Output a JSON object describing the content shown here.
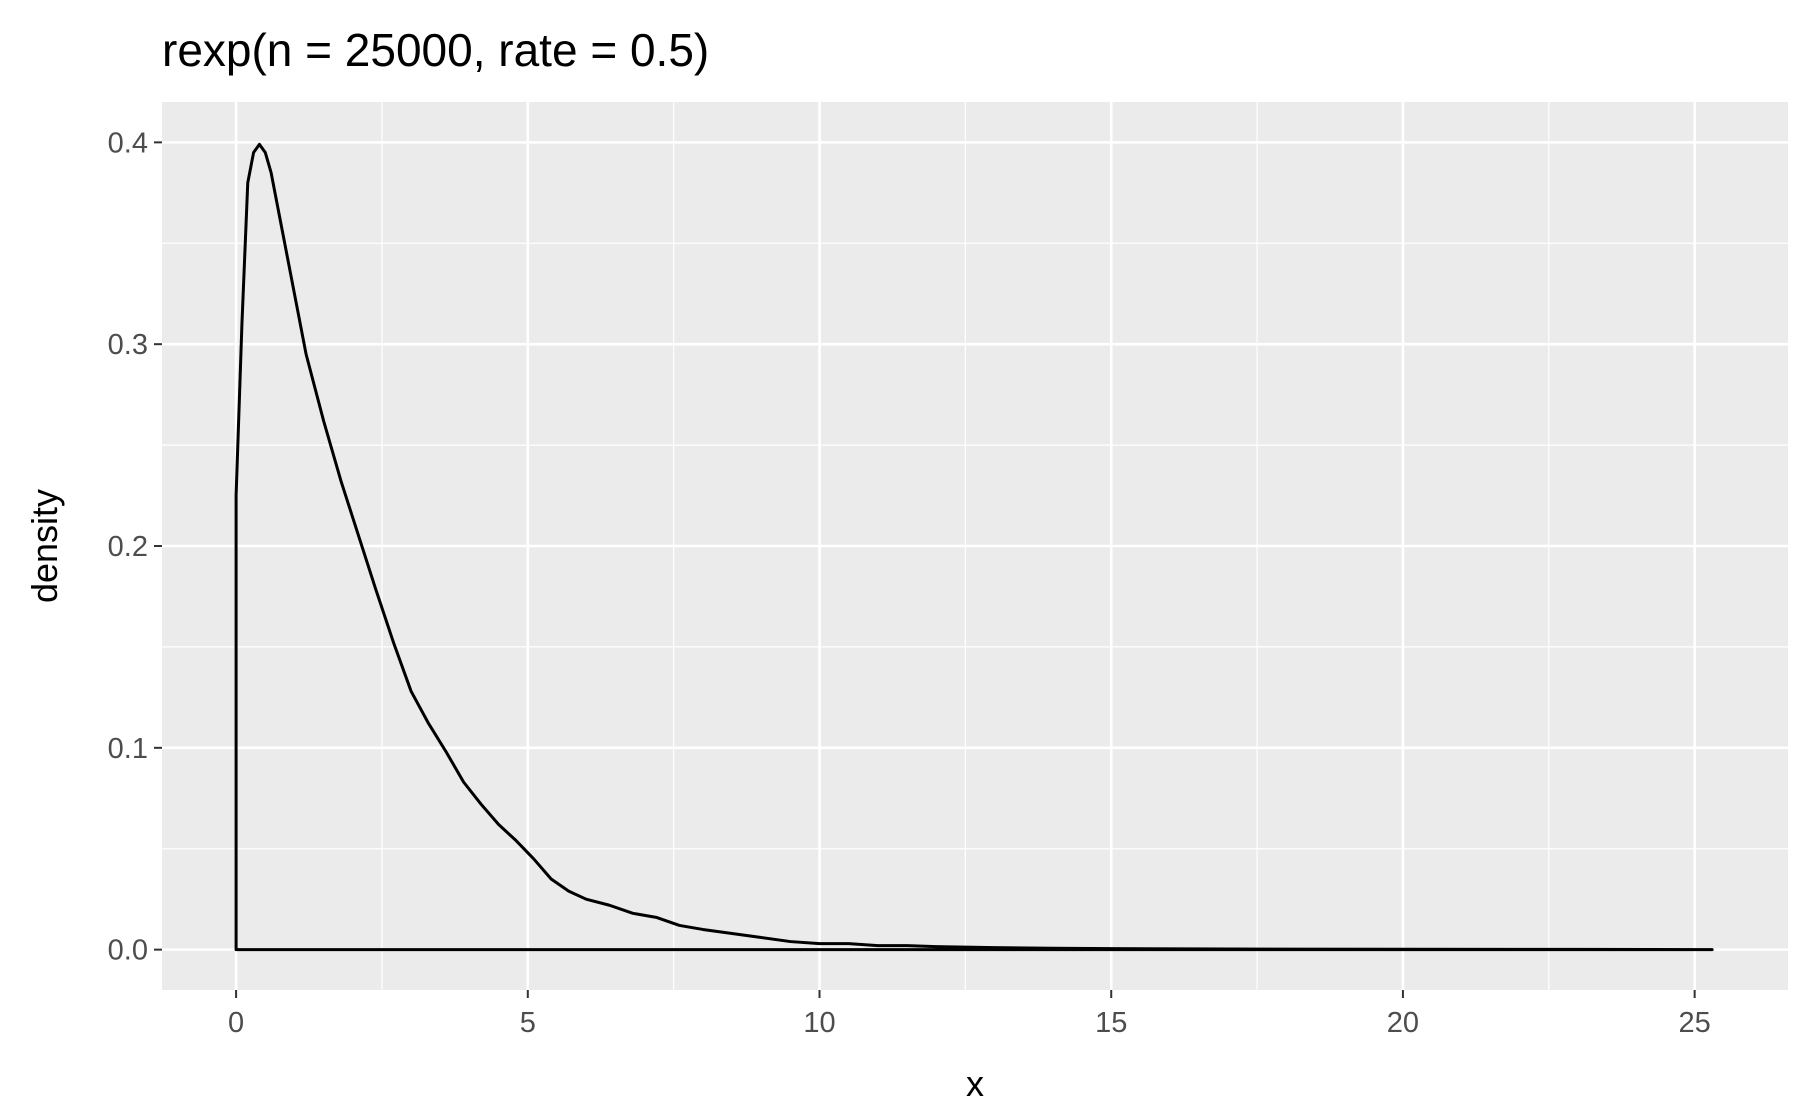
{
  "chart_data": {
    "type": "area",
    "title": "rexp(n = 25000, rate = 0.5)",
    "xlabel": "x",
    "ylabel": "density",
    "xlim": [
      -1.27,
      26.6
    ],
    "ylim": [
      -0.02,
      0.42
    ],
    "x_ticks": [
      0,
      5,
      10,
      15,
      20,
      25
    ],
    "x_tick_labels": [
      "0",
      "5",
      "10",
      "15",
      "20",
      "25"
    ],
    "y_ticks": [
      0.0,
      0.1,
      0.2,
      0.3,
      0.4
    ],
    "y_tick_labels": [
      "0.0",
      "0.1",
      "0.2",
      "0.3",
      "0.4"
    ],
    "grid": true,
    "background": "#EBEBEB",
    "grid_color": "#FFFFFF",
    "line_color": "#000000",
    "series": [
      {
        "x": [
          0.0,
          0.1,
          0.2,
          0.3,
          0.4,
          0.5,
          0.6,
          0.7,
          0.8,
          1.0,
          1.2,
          1.5,
          1.8,
          2.1,
          2.4,
          2.7,
          3.0,
          3.3,
          3.6,
          3.9,
          4.2,
          4.5,
          4.8,
          5.1,
          5.4,
          5.7,
          6.0,
          6.4,
          6.8,
          7.2,
          7.6,
          8.0,
          8.5,
          9.0,
          9.5,
          10.0,
          10.5,
          11.0,
          11.5,
          12.0,
          13.0,
          14.0,
          15.0,
          17.0,
          20.0,
          23.0,
          25.3
        ],
        "y": [
          0.225,
          0.31,
          0.38,
          0.395,
          0.399,
          0.395,
          0.385,
          0.37,
          0.355,
          0.325,
          0.295,
          0.262,
          0.232,
          0.205,
          0.178,
          0.152,
          0.128,
          0.112,
          0.098,
          0.083,
          0.072,
          0.062,
          0.054,
          0.045,
          0.035,
          0.029,
          0.025,
          0.022,
          0.018,
          0.016,
          0.012,
          0.01,
          0.008,
          0.006,
          0.004,
          0.003,
          0.003,
          0.002,
          0.002,
          0.0015,
          0.001,
          0.0007,
          0.0005,
          0.0003,
          0.0002,
          0.0001,
          0.0
        ]
      }
    ]
  }
}
